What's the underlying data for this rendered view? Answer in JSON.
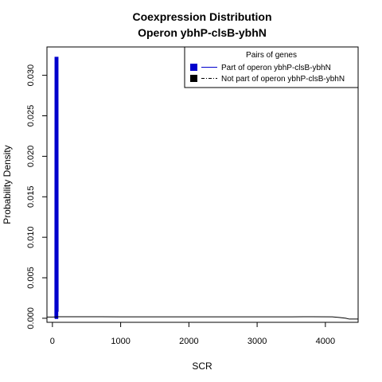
{
  "chart_data": {
    "type": "line",
    "title": [
      "Coexpression Distribution",
      "Operon ybhP-clsB-ybhN"
    ],
    "xlabel": "SCR",
    "ylabel": "Probability Density",
    "xlim": [
      -80,
      4480
    ],
    "ylim": [
      -0.0005,
      0.0335
    ],
    "x_ticks": [
      0,
      1000,
      2000,
      3000,
      4000
    ],
    "x_tick_labels": [
      "0",
      "1000",
      "2000",
      "3000",
      "4000"
    ],
    "y_ticks": [
      0.0,
      0.005,
      0.01,
      0.015,
      0.02,
      0.025,
      0.03
    ],
    "y_tick_labels": [
      "0.000",
      "0.005",
      "0.010",
      "0.015",
      "0.020",
      "0.025",
      "0.030"
    ],
    "grid": false,
    "legend": {
      "title": "Pairs of genes",
      "placement": "top-right",
      "entries": [
        "Part of operon ybhP-clsB-ybhN",
        "Not part of operon ybhP-clsB-ybhN"
      ]
    },
    "series": [
      {
        "name": "Part of operon ybhP-clsB-ybhN",
        "color": "#0000cd",
        "style": "solid",
        "x": [
          40,
          42,
          43,
          45,
          46,
          60,
          62,
          63,
          65,
          66,
          75,
          76,
          78,
          80
        ],
        "y": [
          0.0,
          0.0322,
          0.0322,
          0.0,
          0.0,
          0.0,
          0.0322,
          0.0322,
          0.0,
          0.0,
          0.0,
          0.0322,
          0.0322,
          0.0008
        ]
      },
      {
        "name": "Not part of operon ybhP-clsB-ybhN",
        "color": "#000000",
        "style": "solid",
        "x": [
          -80,
          0,
          100,
          500,
          1000,
          1500,
          2000,
          2500,
          3000,
          3500,
          3800,
          4100,
          4200,
          4300,
          4350,
          4480
        ],
        "y": [
          0.00015,
          0.00015,
          0.00019,
          0.00019,
          0.00018,
          0.00018,
          0.00017,
          0.00017,
          0.00017,
          0.00018,
          0.00019,
          0.00018,
          0.0001,
          0.0,
          -0.0001,
          -0.0001
        ]
      }
    ]
  }
}
